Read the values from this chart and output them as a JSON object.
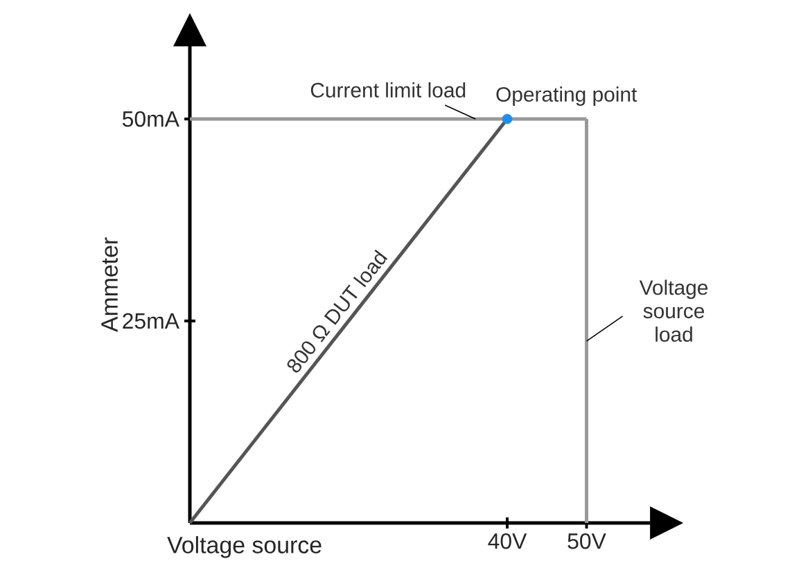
{
  "chart_data": {
    "type": "line",
    "xlabel": "Voltage source",
    "ylabel": "Ammeter",
    "xlim": [
      0,
      58
    ],
    "ylim": [
      0,
      59
    ],
    "xticks": [
      {
        "value": 40,
        "label": "40V"
      },
      {
        "value": 50,
        "label": "50V"
      }
    ],
    "yticks": [
      {
        "value": 25,
        "label": "25mA"
      },
      {
        "value": 50,
        "label": "50mA"
      }
    ],
    "grid": false,
    "series": [
      {
        "name": "800 Ω DUT load",
        "color": "#555555",
        "x": [
          0,
          40
        ],
        "values": [
          0,
          50
        ]
      },
      {
        "name": "Current limit load",
        "color": "#999999",
        "x": [
          0,
          50
        ],
        "values": [
          50,
          50
        ]
      },
      {
        "name": "Voltage source load",
        "color": "#999999",
        "x": [
          50,
          50
        ],
        "values": [
          50,
          0
        ]
      },
      {
        "name": "Operating point",
        "type": "scatter",
        "color": "#1e8fef",
        "x": [
          40
        ],
        "values": [
          50
        ]
      }
    ]
  }
}
